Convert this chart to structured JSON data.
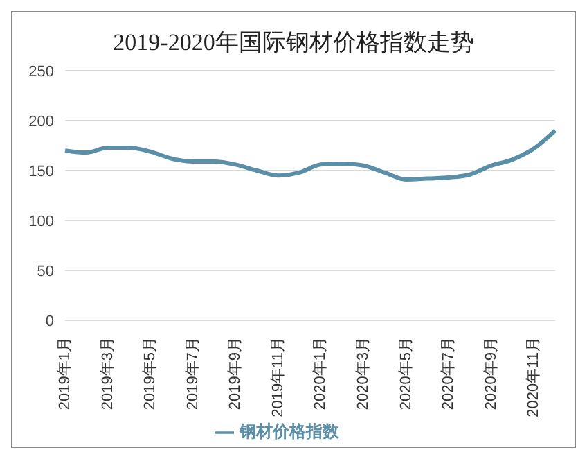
{
  "chart_data": {
    "type": "line",
    "title": "2019-2020年国际钢材价格指数走势",
    "categories": [
      "2019年1月",
      null,
      "2019年3月",
      null,
      "2019年5月",
      null,
      "2019年7月",
      null,
      "2019年9月",
      null,
      "2019年11月",
      null,
      "2020年1月",
      null,
      "2020年3月",
      null,
      "2020年5月",
      null,
      "2020年7月",
      null,
      "2020年9月",
      null,
      "2020年11月",
      null
    ],
    "series": [
      {
        "name": "钢材价格指数",
        "color": "#5b8fa8",
        "values": [
          170,
          168,
          173,
          173,
          169,
          162,
          159,
          159,
          156,
          150,
          145,
          148,
          156,
          157,
          155,
          148,
          141,
          142,
          143,
          146,
          155,
          161,
          172,
          190
        ]
      }
    ],
    "ylim": [
      0,
      250
    ],
    "yticks": [
      0,
      50,
      100,
      150,
      200,
      250
    ],
    "grid": "y",
    "legend": "bottom",
    "marker": "none",
    "line_style": "solid"
  }
}
